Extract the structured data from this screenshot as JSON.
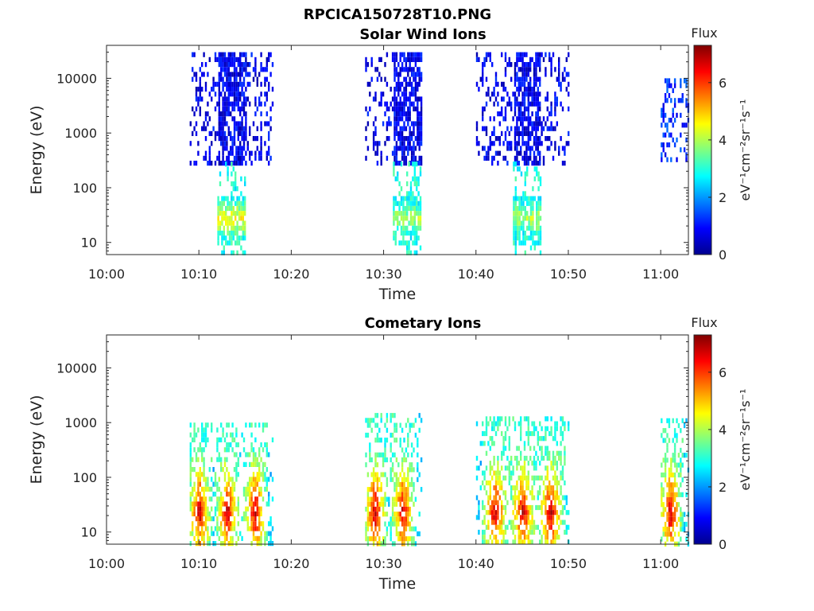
{
  "figure": {
    "title": "RPCICA150728T10.PNG"
  },
  "chart_data": [
    {
      "type": "heatmap",
      "title": "Solar Wind Ions",
      "xlabel": "Time",
      "ylabel": "Energy (eV)",
      "x_range": [
        "10:00",
        "11:03"
      ],
      "x_ticks": [
        "10:00",
        "10:10",
        "10:20",
        "10:30",
        "10:40",
        "10:50",
        "11:00"
      ],
      "y_scale": "log",
      "y_range": [
        6,
        40000
      ],
      "y_ticks": [
        "10",
        "100",
        "1000",
        "10000"
      ],
      "colorbar": {
        "title": "Flux",
        "label": "eV⁻¹cm⁻²sr⁻¹s⁻¹",
        "range": [
          0,
          7.3
        ],
        "ticks": [
          "0",
          "2",
          "4",
          "6"
        ],
        "colormap": "jet"
      },
      "grid": false,
      "clusters": [
        {
          "time_span": [
            "10:09",
            "10:18"
          ],
          "dense_span": [
            "10:12",
            "10:15"
          ],
          "energy_span": [
            300,
            30000
          ],
          "flux": 0.8
        },
        {
          "time_span": [
            "10:12",
            "10:15"
          ],
          "energy_span": [
            6,
            300
          ],
          "flux": 2.9,
          "peak_energy": 30,
          "peak_flux": 4.6
        },
        {
          "time_span": [
            "10:28",
            "10:34"
          ],
          "dense_span": [
            "10:31",
            "10:34"
          ],
          "energy_span": [
            300,
            30000
          ],
          "flux": 0.8
        },
        {
          "time_span": [
            "10:31",
            "10:34"
          ],
          "energy_span": [
            6,
            300
          ],
          "flux": 2.9,
          "peak_energy": 30,
          "peak_flux": 4.0
        },
        {
          "time_span": [
            "10:40",
            "10:50"
          ],
          "dense_span": [
            "10:44",
            "10:47"
          ],
          "energy_span": [
            300,
            30000
          ],
          "flux": 0.8
        },
        {
          "time_span": [
            "10:44",
            "10:47"
          ],
          "energy_span": [
            6,
            300
          ],
          "flux": 2.9,
          "peak_energy": 30,
          "peak_flux": 4.0
        },
        {
          "time_span": [
            "11:00",
            "11:03"
          ],
          "energy_span": [
            300,
            10000
          ],
          "flux": 1.2
        }
      ]
    },
    {
      "type": "heatmap",
      "title": "Cometary Ions",
      "xlabel": "Time",
      "ylabel": "Energy (eV)",
      "x_range": [
        "10:00",
        "11:03"
      ],
      "x_ticks": [
        "10:00",
        "10:10",
        "10:20",
        "10:30",
        "10:40",
        "10:50",
        "11:00"
      ],
      "y_scale": "log",
      "y_range": [
        6,
        40000
      ],
      "y_ticks": [
        "10",
        "100",
        "1000",
        "10000"
      ],
      "colorbar": {
        "title": "Flux",
        "label": "eV⁻¹cm⁻²sr⁻¹s⁻¹",
        "range": [
          0,
          7.3
        ],
        "ticks": [
          "0",
          "2",
          "4",
          "6"
        ],
        "colormap": "jet"
      },
      "grid": false,
      "clusters": [
        {
          "time_span": [
            "10:09",
            "10:18"
          ],
          "energy_span": [
            6,
            1000
          ],
          "flux": 2.5,
          "peak_energy": 25,
          "peak_flux": 6.9,
          "bursts": [
            "10:10",
            "10:13",
            "10:16"
          ]
        },
        {
          "time_span": [
            "10:28",
            "10:34"
          ],
          "energy_span": [
            6,
            1500
          ],
          "flux": 2.5,
          "peak_energy": 25,
          "peak_flux": 6.9,
          "bursts": [
            "10:29",
            "10:32"
          ]
        },
        {
          "time_span": [
            "10:40",
            "10:50"
          ],
          "energy_span": [
            6,
            1300
          ],
          "flux": 2.5,
          "peak_energy": 25,
          "peak_flux": 6.9,
          "bursts": [
            "10:42",
            "10:45",
            "10:48"
          ]
        },
        {
          "time_span": [
            "11:00",
            "11:03"
          ],
          "energy_span": [
            6,
            1200
          ],
          "flux": 2.5,
          "peak_energy": 25,
          "peak_flux": 6.9,
          "bursts": [
            "11:01"
          ]
        }
      ]
    }
  ]
}
